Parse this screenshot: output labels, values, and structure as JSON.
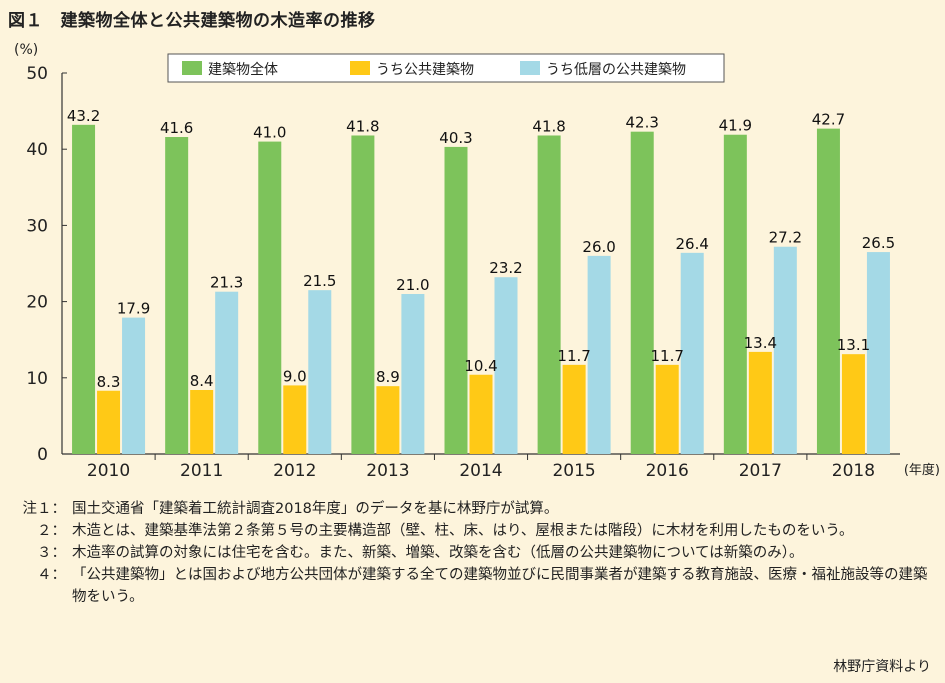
{
  "title": "図１　建築物全体と公共建築物の木造率の推移",
  "colors": {
    "background": "#fdf4dc",
    "series": [
      "#7dc35b",
      "#ffc916",
      "#a4d9e6"
    ]
  },
  "chart_data": {
    "type": "bar",
    "title": "図１　建築物全体と公共建築物の木造率の推移",
    "ylabel": "(%)",
    "xlabel": "(年度)",
    "ylim": [
      0,
      50
    ],
    "yticks": [
      0,
      10,
      20,
      30,
      40,
      50
    ],
    "legend_position": "top",
    "grid": false,
    "categories": [
      "2010",
      "2011",
      "2012",
      "2013",
      "2014",
      "2015",
      "2016",
      "2017",
      "2018"
    ],
    "series": [
      {
        "name": "建築物全体",
        "values": [
          43.2,
          41.6,
          41.0,
          41.8,
          40.3,
          41.8,
          42.3,
          41.9,
          42.7
        ],
        "labels": [
          "43.2",
          "41.6",
          "41.0",
          "41.8",
          "40.3",
          "41.8",
          "42.3",
          "41.9",
          "42.7"
        ]
      },
      {
        "name": "うち公共建築物",
        "values": [
          8.3,
          8.4,
          9.0,
          8.9,
          10.4,
          11.7,
          11.7,
          13.4,
          13.1
        ],
        "labels": [
          "8.3",
          "8.4",
          "9.0",
          "8.9",
          "10.4",
          "11.7",
          "11.7",
          "13.4",
          "13.1"
        ]
      },
      {
        "name": "うち低層の公共建築物",
        "values": [
          17.9,
          21.3,
          21.5,
          21.0,
          23.2,
          26.0,
          26.4,
          27.2,
          26.5
        ],
        "labels": [
          "17.9",
          "21.3",
          "21.5",
          "21.0",
          "23.2",
          "26.0",
          "26.4",
          "27.2",
          "26.5"
        ]
      }
    ]
  },
  "notes": [
    {
      "prefix": "注１：",
      "text": "国土交通省「建築着工統計調査2018年度」のデータを基に林野庁が試算。"
    },
    {
      "prefix": "２：",
      "text": "木造とは、建築基準法第２条第５号の主要構造部（壁、柱、床、はり、屋根または階段）に木材を利用したものをいう。"
    },
    {
      "prefix": "３：",
      "text": "木造率の試算の対象には住宅を含む。また、新築、増築、改築を含む（低層の公共建築物については新築のみ）。"
    },
    {
      "prefix": "４：",
      "text": "「公共建築物」とは国および地方公共団体が建築する全ての建築物並びに民間事業者が建築する教育施設、医療・福祉施設等の建築物をいう。"
    }
  ],
  "source": "林野庁資料より"
}
